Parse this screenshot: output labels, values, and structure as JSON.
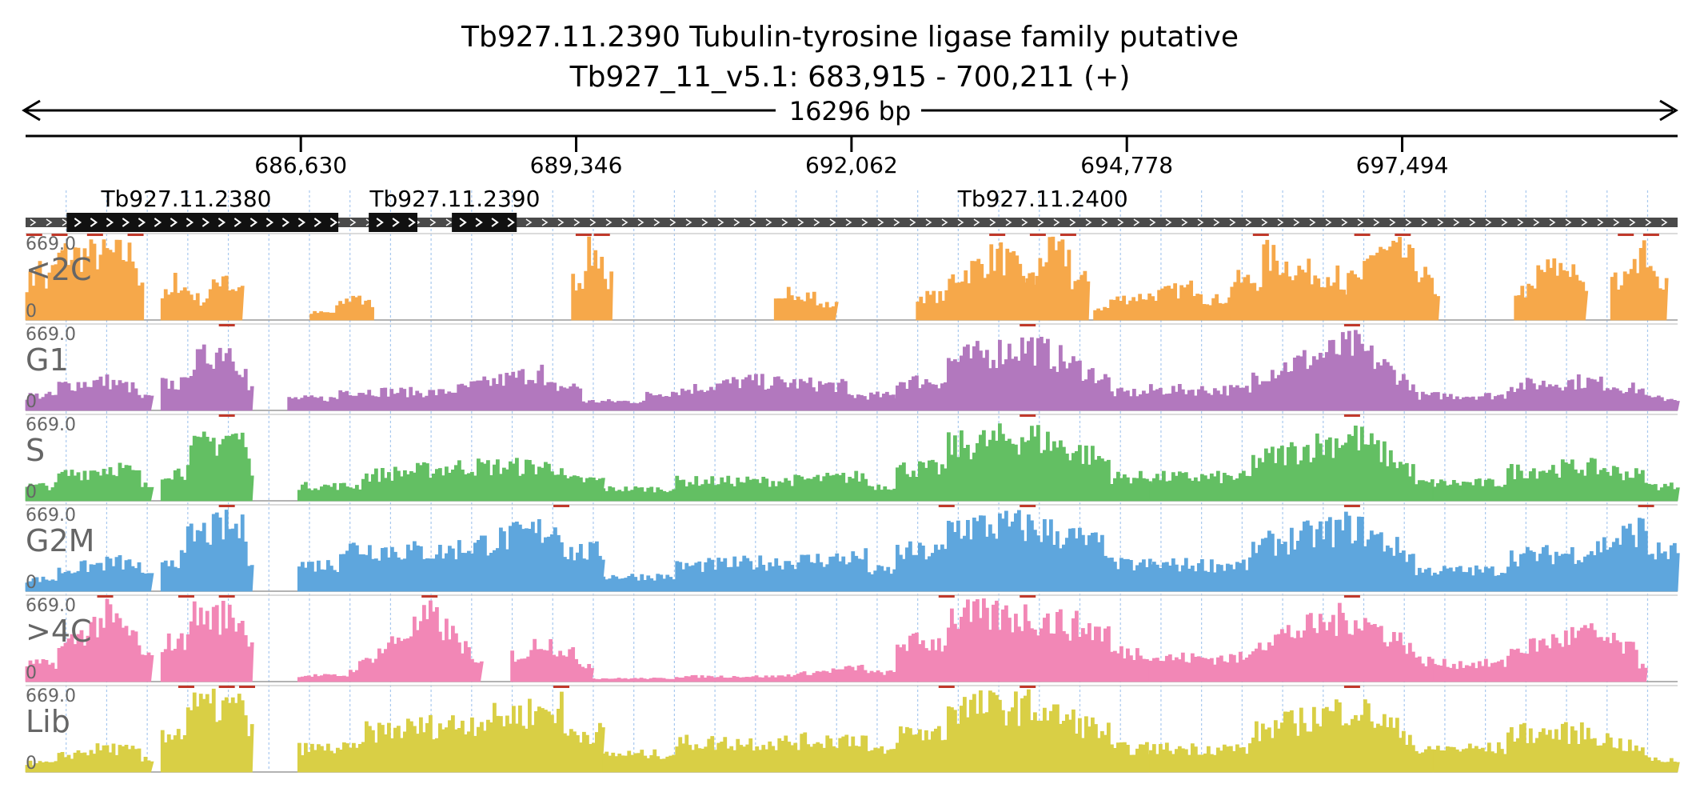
{
  "header": {
    "title": "Tb927.11.2390  Tubulin-tyrosine ligase family  putative",
    "locus": "Tb927_11_v5.1: 683,915 - 700,211 (+)",
    "span_label": "16296 bp"
  },
  "chart_data": {
    "type": "area",
    "region": {
      "start": 683915,
      "end": 700211
    },
    "ticks": [
      {
        "value": 686630,
        "label": "686,630"
      },
      {
        "value": 689346,
        "label": "689,346"
      },
      {
        "value": 692062,
        "label": "692,062"
      },
      {
        "value": 694778,
        "label": "694,778"
      },
      {
        "value": 697494,
        "label": "697,494"
      }
    ],
    "genes": [
      {
        "name": "Tb927.11.2380",
        "start": 683915,
        "end": 700211,
        "cds_start": 684320,
        "cds_end": 687000,
        "label_pos": 685500
      },
      {
        "name": "Tb927.11.2390",
        "start": 683915,
        "end": 700211,
        "cds_start": 687300,
        "cds_end": 687780,
        "label_pos": 688150
      },
      {
        "name": "Tb927.11.2400",
        "start": 683915,
        "end": 700211,
        "cds_start": 688120,
        "cds_end": 688760,
        "label_pos": 693950
      }
    ],
    "track_max_label": "669.0",
    "track_min_label": "0",
    "tracks": [
      {
        "name": "<2C",
        "color": "#f6a84a",
        "segments": [
          {
            "start": 683915,
            "end": 685080,
            "peaks": [
              [
                684000,
                669
              ],
              [
                684100,
                350
              ],
              [
                684250,
                669
              ],
              [
                684600,
                669
              ],
              [
                685000,
                669
              ]
            ]
          },
          {
            "start": 685250,
            "end": 686050,
            "peaks": [
              [
                685350,
                420
              ],
              [
                685650,
                180
              ],
              [
                685900,
                550
              ]
            ]
          },
          {
            "start": 686720,
            "end": 687350,
            "peaks": [
              [
                686950,
                120
              ],
              [
                687200,
                280
              ]
            ]
          },
          {
            "start": 689300,
            "end": 689700,
            "peaks": [
              [
                689420,
                669
              ],
              [
                689600,
                669
              ]
            ]
          },
          {
            "start": 691300,
            "end": 691900,
            "peaks": [
              [
                691400,
                300
              ],
              [
                691700,
                250
              ]
            ]
          },
          {
            "start": 692700,
            "end": 694000,
            "peaks": [
              [
                693000,
                400
              ],
              [
                693500,
                669
              ],
              [
                693900,
                350
              ]
            ]
          },
          {
            "start": 693750,
            "end": 694400,
            "peaks": [
              [
                693900,
                669
              ],
              [
                694200,
                669
              ]
            ]
          },
          {
            "start": 694450,
            "end": 695800,
            "peaks": [
              [
                694600,
                200
              ],
              [
                695000,
                250
              ],
              [
                695500,
                350
              ]
            ]
          },
          {
            "start": 695800,
            "end": 696950,
            "peaks": [
              [
                696100,
                669
              ],
              [
                696500,
                500
              ],
              [
                696850,
                450
              ]
            ]
          },
          {
            "start": 696950,
            "end": 697850,
            "peaks": [
              [
                697100,
                669
              ],
              [
                697500,
                669
              ],
              [
                697800,
                350
              ]
            ]
          },
          {
            "start": 698600,
            "end": 699300,
            "peaks": [
              [
                698800,
                500
              ],
              [
                699200,
                550
              ]
            ]
          },
          {
            "start": 699550,
            "end": 700100,
            "peaks": [
              [
                699700,
                669
              ],
              [
                699950,
                669
              ]
            ]
          }
        ]
      },
      {
        "name": "G1",
        "color": "#b278be",
        "segments": [
          {
            "start": 683915,
            "end": 685150,
            "peaks": [
              [
                684200,
                250
              ],
              [
                684700,
                300
              ],
              [
                685000,
                220
              ]
            ]
          },
          {
            "start": 685250,
            "end": 686150,
            "peaks": [
              [
                685500,
                450
              ],
              [
                685900,
                669
              ],
              [
                686100,
                350
              ]
            ]
          },
          {
            "start": 686500,
            "end": 689400,
            "peaks": [
              [
                687000,
                200
              ],
              [
                688000,
                180
              ],
              [
                689000,
                400
              ]
            ]
          },
          {
            "start": 689400,
            "end": 692500,
            "peaks": [
              [
                690000,
                150
              ],
              [
                691000,
                300
              ],
              [
                692000,
                250
              ]
            ]
          },
          {
            "start": 692500,
            "end": 695000,
            "peaks": [
              [
                693000,
                500
              ],
              [
                693800,
                669
              ],
              [
                694600,
                300
              ]
            ]
          },
          {
            "start": 695000,
            "end": 697800,
            "peaks": [
              [
                696000,
                350
              ],
              [
                697000,
                669
              ],
              [
                697600,
                250
              ]
            ]
          },
          {
            "start": 697800,
            "end": 700211,
            "peaks": [
              [
                698500,
                250
              ],
              [
                699300,
                300
              ],
              [
                699900,
                200
              ]
            ]
          }
        ]
      },
      {
        "name": "S",
        "color": "#63bf63",
        "segments": [
          {
            "start": 683915,
            "end": 685150,
            "peaks": [
              [
                684200,
                250
              ],
              [
                684800,
                350
              ],
              [
                685050,
                250
              ]
            ]
          },
          {
            "start": 685250,
            "end": 686150,
            "peaks": [
              [
                685500,
                500
              ],
              [
                685900,
                669
              ],
              [
                686100,
                600
              ]
            ]
          },
          {
            "start": 686600,
            "end": 689600,
            "peaks": [
              [
                687200,
                250
              ],
              [
                688200,
                350
              ],
              [
                689200,
                350
              ]
            ]
          },
          {
            "start": 689600,
            "end": 692500,
            "peaks": [
              [
                690300,
                200
              ],
              [
                691300,
                200
              ],
              [
                692200,
                250
              ]
            ]
          },
          {
            "start": 692500,
            "end": 695000,
            "peaks": [
              [
                693000,
                550
              ],
              [
                693800,
                669
              ],
              [
                694600,
                400
              ]
            ]
          },
          {
            "start": 695000,
            "end": 697800,
            "peaks": [
              [
                696000,
                400
              ],
              [
                697000,
                669
              ],
              [
                697600,
                300
              ]
            ]
          },
          {
            "start": 697800,
            "end": 700211,
            "peaks": [
              [
                698500,
                300
              ],
              [
                699300,
                350
              ],
              [
                699900,
                250
              ]
            ]
          }
        ]
      },
      {
        "name": "G2M",
        "color": "#5ea6dd",
        "segments": [
          {
            "start": 683915,
            "end": 685150,
            "peaks": [
              [
                684200,
                200
              ],
              [
                684800,
                300
              ],
              [
                685050,
                250
              ]
            ]
          },
          {
            "start": 685250,
            "end": 686150,
            "peaks": [
              [
                685500,
                550
              ],
              [
                685900,
                669
              ],
              [
                686100,
                600
              ]
            ]
          },
          {
            "start": 686600,
            "end": 689600,
            "peaks": [
              [
                687000,
                450
              ],
              [
                688000,
                400
              ],
              [
                689200,
                669
              ]
            ]
          },
          {
            "start": 689600,
            "end": 692500,
            "peaks": [
              [
                690300,
                250
              ],
              [
                691300,
                300
              ],
              [
                692200,
                350
              ]
            ]
          },
          {
            "start": 692500,
            "end": 695000,
            "peaks": [
              [
                693000,
                669
              ],
              [
                693800,
                669
              ],
              [
                694600,
                450
              ]
            ]
          },
          {
            "start": 695000,
            "end": 697800,
            "peaks": [
              [
                696000,
                450
              ],
              [
                697000,
                669
              ],
              [
                697600,
                350
              ]
            ]
          },
          {
            "start": 697800,
            "end": 700211,
            "peaks": [
              [
                698500,
                350
              ],
              [
                699300,
                400
              ],
              [
                699900,
                669
              ]
            ]
          }
        ]
      },
      {
        "name": ">4C",
        "color": "#f287b6",
        "segments": [
          {
            "start": 683915,
            "end": 685150,
            "peaks": [
              [
                684200,
                300
              ],
              [
                684700,
                669
              ],
              [
                685050,
                400
              ]
            ]
          },
          {
            "start": 685250,
            "end": 686150,
            "peaks": [
              [
                685500,
                669
              ],
              [
                685900,
                669
              ],
              [
                686100,
                600
              ]
            ]
          },
          {
            "start": 686600,
            "end": 688400,
            "peaks": [
              [
                687100,
                100
              ],
              [
                687900,
                669
              ],
              [
                688300,
                300
              ]
            ]
          },
          {
            "start": 688700,
            "end": 689500,
            "peaks": [
              [
                688900,
                450
              ],
              [
                689300,
                300
              ]
            ]
          },
          {
            "start": 689500,
            "end": 692500,
            "peaks": [
              [
                690300,
                50
              ],
              [
                691300,
                50
              ],
              [
                692200,
                150
              ]
            ]
          },
          {
            "start": 692500,
            "end": 695000,
            "peaks": [
              [
                693000,
                669
              ],
              [
                693800,
                669
              ],
              [
                694600,
                500
              ]
            ]
          },
          {
            "start": 695000,
            "end": 697800,
            "peaks": [
              [
                696000,
                400
              ],
              [
                697000,
                669
              ],
              [
                697600,
                350
              ]
            ]
          },
          {
            "start": 697800,
            "end": 699900,
            "peaks": [
              [
                698500,
                300
              ],
              [
                699300,
                500
              ],
              [
                699800,
                300
              ]
            ]
          }
        ]
      },
      {
        "name": "Lib",
        "color": "#d9cf45",
        "segments": [
          {
            "start": 683915,
            "end": 685150,
            "peaks": [
              [
                684200,
                150
              ],
              [
                684700,
                250
              ],
              [
                685050,
                200
              ]
            ]
          },
          {
            "start": 685250,
            "end": 686150,
            "peaks": [
              [
                685500,
                669
              ],
              [
                685900,
                669
              ],
              [
                686100,
                669
              ]
            ]
          },
          {
            "start": 686600,
            "end": 689600,
            "peaks": [
              [
                687200,
                400
              ],
              [
                688200,
                500
              ],
              [
                689200,
                669
              ]
            ]
          },
          {
            "start": 689600,
            "end": 692500,
            "peaks": [
              [
                690300,
                300
              ],
              [
                691300,
                300
              ],
              [
                692200,
                350
              ]
            ]
          },
          {
            "start": 692500,
            "end": 695000,
            "peaks": [
              [
                693000,
                669
              ],
              [
                693800,
                669
              ],
              [
                694600,
                400
              ]
            ]
          },
          {
            "start": 695000,
            "end": 697800,
            "peaks": [
              [
                696000,
                400
              ],
              [
                697000,
                669
              ],
              [
                697600,
                350
              ]
            ]
          },
          {
            "start": 697800,
            "end": 700211,
            "peaks": [
              [
                698500,
                400
              ],
              [
                699300,
                400
              ],
              [
                699900,
                200
              ]
            ]
          }
        ]
      }
    ]
  }
}
